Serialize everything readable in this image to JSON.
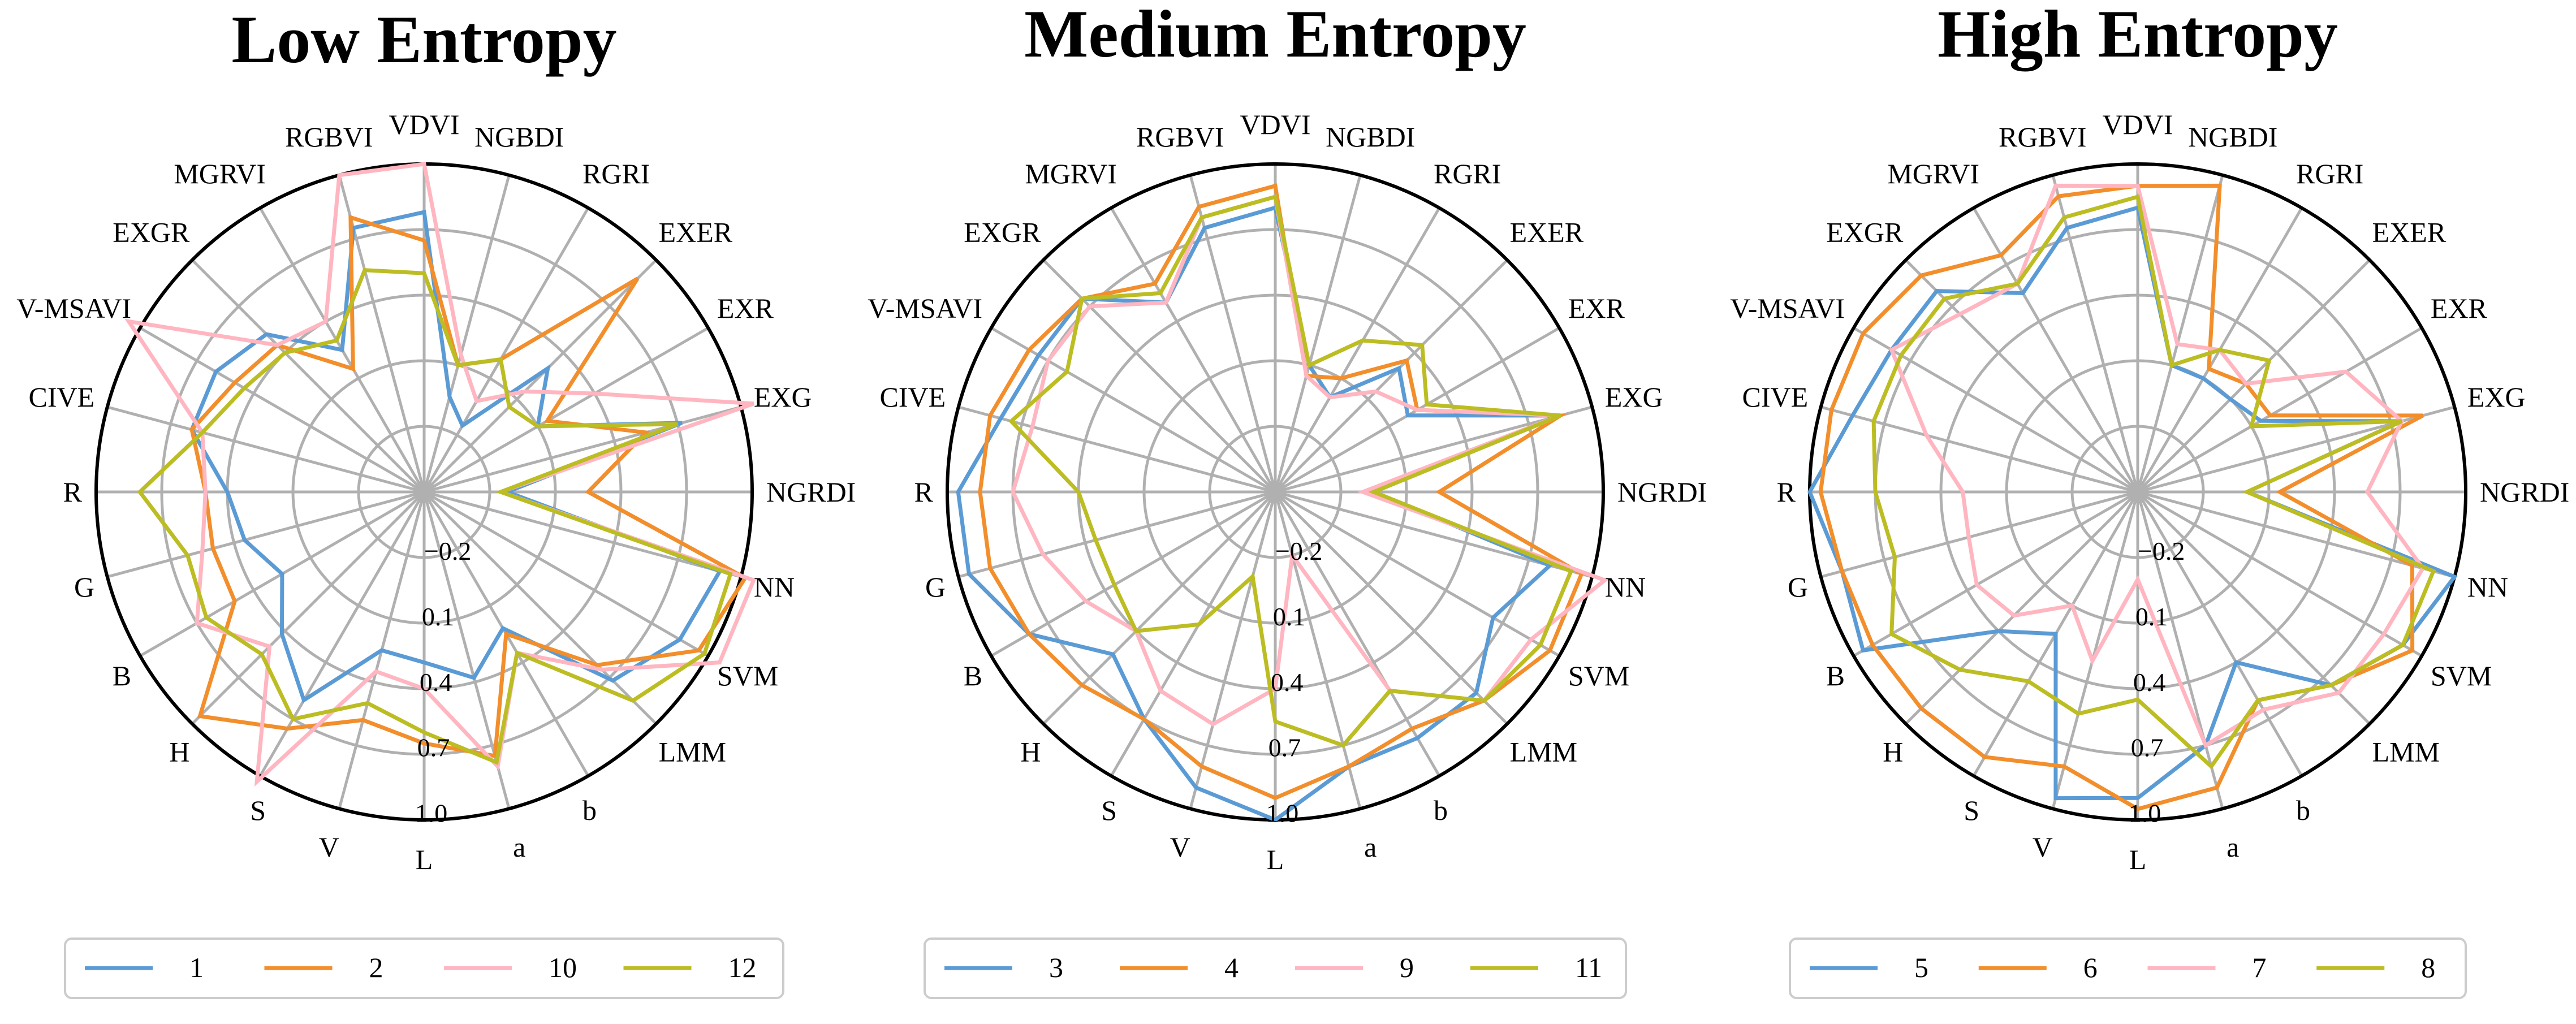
{
  "chart_data": [
    {
      "type": "radar",
      "title": "Low Entropy",
      "grid": true,
      "legend_position": "bottom",
      "rlim": [
        -0.5,
        1.0
      ],
      "rticks": [
        "−0.2",
        "0.1",
        "0.4",
        "0.7",
        "1.0"
      ],
      "axes": [
        "NGRDI",
        "EXG",
        "EXR",
        "EXER",
        "RGRI",
        "NGBDI",
        "VDVI",
        "RGBVI",
        "MGRVI",
        "EXGR",
        "V-MSAVI",
        "CIVE",
        "R",
        "G",
        "B",
        "H",
        "S",
        "V",
        "L",
        "a",
        "b",
        "LMM",
        "SVM",
        "NN"
      ],
      "series": [
        {
          "name": "1",
          "color": "#5b9bd5",
          "values": [
            -0.12,
            0.72,
            0.1,
            0.3,
            -0.15,
            -0.05,
            0.78,
            0.75,
            0.25,
            0.52,
            0.6,
            0.6,
            0.4,
            0.35,
            0.25,
            0.42,
            0.6,
            0.25,
            0.28,
            0.38,
            0.22,
            0.72,
            0.85,
            0.9
          ]
        },
        {
          "name": "2",
          "color": "#f28e2b",
          "values": [
            0.25,
            0.55,
            0.15,
            0.88,
            0.2,
            0.1,
            0.65,
            0.8,
            0.15,
            0.45,
            0.5,
            0.6,
            0.5,
            0.5,
            0.5,
            0.95,
            0.75,
            0.58,
            0.65,
            0.75,
            0.25,
            0.62,
            0.95,
            1.02
          ]
        },
        {
          "name": "10",
          "color": "#ffb6c1",
          "values": [
            -0.15,
            1.06,
            0.4,
            0.15,
            -0.02,
            0.15,
            1.0,
            1.0,
            0.4,
            0.45,
            1.06,
            0.55,
            0.5,
            0.55,
            0.7,
            0.5,
            1.03,
            0.35,
            0.4,
            0.8,
            0.35,
            0.65,
            1.06,
            1.06
          ]
        },
        {
          "name": "12",
          "color": "#bcbd22",
          "values": [
            -0.15,
            0.7,
            0.1,
            0.05,
            0.2,
            0.1,
            0.5,
            0.55,
            0.3,
            0.4,
            0.45,
            0.55,
            0.8,
            0.62,
            0.65,
            0.55,
            0.7,
            0.5,
            0.6,
            0.78,
            0.35,
            0.85,
            0.98,
            0.95
          ]
        }
      ]
    },
    {
      "type": "radar",
      "title": "Medium Entropy",
      "grid": true,
      "legend_position": "bottom",
      "rlim": [
        -0.5,
        1.0
      ],
      "rticks": [
        "−0.2",
        "0.1",
        "0.4",
        "0.7",
        "1.0"
      ],
      "axes": [
        "NGRDI",
        "EXG",
        "EXR",
        "EXER",
        "RGRI",
        "NGBDI",
        "VDVI",
        "RGBVI",
        "MGRVI",
        "EXGR",
        "V-MSAVI",
        "CIVE",
        "R",
        "G",
        "B",
        "H",
        "S",
        "V",
        "L",
        "a",
        "b",
        "LMM",
        "SVM",
        "NN"
      ],
      "series": [
        {
          "name": "3",
          "color": "#5b9bd5",
          "values": [
            -0.05,
            0.85,
            0.2,
            0.3,
            0.0,
            0.1,
            0.8,
            0.75,
            0.5,
            0.75,
            0.75,
            0.8,
            0.95,
            0.95,
            0.8,
            0.55,
            0.7,
            0.9,
            1.0,
            0.8,
            0.8,
            0.8,
            0.65,
            0.8
          ]
        },
        {
          "name": "4",
          "color": "#f28e2b",
          "values": [
            0.25,
            0.85,
            0.25,
            0.35,
            0.1,
            0.05,
            0.9,
            0.85,
            0.6,
            0.75,
            0.8,
            0.85,
            0.85,
            0.85,
            0.8,
            0.75,
            0.7,
            0.8,
            0.9,
            0.8,
            0.75,
            0.85,
            0.95,
            0.95
          ]
        },
        {
          "name": "9",
          "color": "#ffb6c1",
          "values": [
            -0.1,
            0.85,
            0.25,
            0.15,
            0.0,
            0.05,
            0.85,
            0.8,
            0.5,
            0.7,
            0.7,
            0.65,
            0.7,
            0.6,
            0.5,
            0.4,
            0.55,
            0.6,
            0.4,
            -0.2,
            0.55,
            0.85,
            0.85,
            1.06
          ]
        },
        {
          "name": "11",
          "color": "#bcbd22",
          "values": [
            -0.05,
            0.85,
            0.3,
            0.45,
            0.3,
            0.1,
            0.85,
            0.8,
            0.55,
            0.75,
            0.6,
            0.75,
            0.4,
            0.35,
            0.35,
            0.4,
            0.2,
            -0.1,
            0.55,
            0.7,
            0.55,
            0.85,
            0.9,
            0.9
          ]
        }
      ]
    },
    {
      "type": "radar",
      "title": "High Entropy",
      "grid": true,
      "legend_position": "bottom",
      "rlim": [
        -0.5,
        1.0
      ],
      "rticks": [
        "−0.2",
        "0.1",
        "0.4",
        "0.7",
        "1.0"
      ],
      "axes": [
        "NGRDI",
        "EXG",
        "EXR",
        "EXER",
        "RGRI",
        "NGBDI",
        "VDVI",
        "RGBVI",
        "MGRVI",
        "EXGR",
        "V-MSAVI",
        "CIVE",
        "R",
        "G",
        "B",
        "H",
        "S",
        "V",
        "L",
        "a",
        "b",
        "LMM",
        "SVM",
        "NN"
      ],
      "series": [
        {
          "name": "5",
          "color": "#5b9bd5",
          "values": [
            0.0,
            0.75,
            0.15,
            0.1,
            0.1,
            0.1,
            0.8,
            0.75,
            0.55,
            0.8,
            0.8,
            0.85,
            1.0,
            0.9,
            0.95,
            0.4,
            0.25,
            0.95,
            0.9,
            0.7,
            0.4,
            0.75,
            0.9,
            1.0
          ]
        },
        {
          "name": "6",
          "color": "#f28e2b",
          "values": [
            0.15,
            0.85,
            0.2,
            0.2,
            0.15,
            0.95,
            0.9,
            0.9,
            0.75,
            0.9,
            0.95,
            0.95,
            0.95,
            0.9,
            0.9,
            0.9,
            0.9,
            0.8,
            0.95,
            0.9,
            0.6,
            0.75,
            0.95,
            0.8
          ]
        },
        {
          "name": "7",
          "color": "#ffb6c1",
          "values": [
            0.55,
            0.75,
            0.6,
            0.2,
            0.25,
            0.2,
            0.9,
            0.95,
            0.6,
            0.65,
            0.8,
            0.5,
            0.3,
            0.3,
            0.35,
            0.3,
            0.1,
            0.3,
            -0.1,
            0.7,
            0.65,
            0.8,
            0.8,
            0.85
          ]
        },
        {
          "name": "8",
          "color": "#bcbd22",
          "values": [
            0.0,
            0.75,
            0.1,
            0.35,
            0.25,
            0.1,
            0.85,
            0.8,
            0.6,
            0.75,
            0.75,
            0.75,
            0.7,
            0.65,
            0.8,
            0.65,
            0.5,
            0.55,
            0.45,
            0.8,
            0.6,
            0.75,
            0.9,
            0.9
          ]
        }
      ]
    }
  ]
}
